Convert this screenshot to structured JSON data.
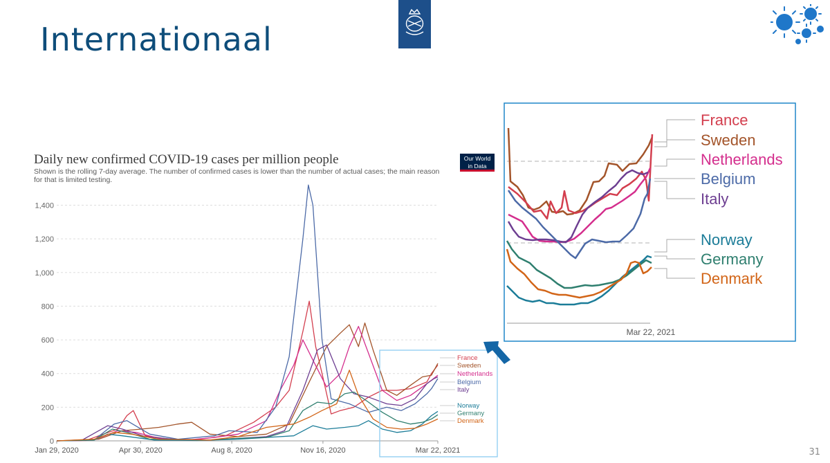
{
  "slide": {
    "title": "Internationaal",
    "page_number": "31"
  },
  "owid_logo": {
    "line1": "Our World",
    "line2": "in Data"
  },
  "colors": {
    "title": "#0e4d7a",
    "France": "#d33e4e",
    "Sweden": "#a3542a",
    "Netherlands": "#d42e8d",
    "Belgium": "#4c6aa7",
    "Italy": "#6d3e91",
    "Norway": "#1b7c98",
    "Germany": "#2f7f6f",
    "Denmark": "#d26518"
  },
  "chart_data": [
    {
      "type": "line",
      "title": "Daily new confirmed COVID-19 cases per million people",
      "subtitle": "Shown is the rolling 7-day average. The number of confirmed cases is lower than the number of actual cases; the main reason for that is limited testing.",
      "xlabel": "",
      "ylabel": "",
      "x_ticks": [
        "Jan 29, 2020",
        "Apr 30, 2020",
        "Aug 8, 2020",
        "Nov 16, 2020",
        "Mar 22, 2021"
      ],
      "y_ticks": [
        "0",
        "200",
        "400",
        "600",
        "800",
        "1,000",
        "1,200",
        "1,400"
      ],
      "x_range": [
        "2020-01-29",
        "2021-03-22"
      ],
      "ylim": [
        0,
        1550
      ],
      "grid": "horizontal dashed",
      "legend": "right, labels at line ends",
      "series": [
        {
          "name": "France",
          "points": [
            [
              "2020-01-29",
              0
            ],
            [
              "2020-03-01",
              2
            ],
            [
              "2020-03-20",
              40
            ],
            [
              "2020-04-05",
              70
            ],
            [
              "2020-04-15",
              150
            ],
            [
              "2020-04-22",
              180
            ],
            [
              "2020-05-05",
              30
            ],
            [
              "2020-06-01",
              10
            ],
            [
              "2020-07-01",
              8
            ],
            [
              "2020-08-01",
              30
            ],
            [
              "2020-09-01",
              110
            ],
            [
              "2020-09-25",
              200
            ],
            [
              "2020-10-10",
              300
            ],
            [
              "2020-10-25",
              650
            ],
            [
              "2020-11-01",
              830
            ],
            [
              "2020-11-08",
              560
            ],
            [
              "2020-11-15",
              400
            ],
            [
              "2020-11-25",
              160
            ],
            [
              "2020-12-05",
              180
            ],
            [
              "2020-12-20",
              200
            ],
            [
              "2021-01-05",
              260
            ],
            [
              "2021-01-20",
              300
            ],
            [
              "2021-02-05",
              300
            ],
            [
              "2021-02-20",
              310
            ],
            [
              "2021-03-01",
              330
            ],
            [
              "2021-03-10",
              350
            ],
            [
              "2021-03-15",
              400
            ],
            [
              "2021-03-22",
              450
            ]
          ]
        },
        {
          "name": "Sweden",
          "points": [
            [
              "2020-01-29",
              0
            ],
            [
              "2020-03-15",
              10
            ],
            [
              "2020-04-10",
              60
            ],
            [
              "2020-05-01",
              70
            ],
            [
              "2020-05-20",
              80
            ],
            [
              "2020-06-10",
              100
            ],
            [
              "2020-06-25",
              110
            ],
            [
              "2020-07-15",
              40
            ],
            [
              "2020-08-15",
              25
            ],
            [
              "2020-09-15",
              40
            ],
            [
              "2020-10-10",
              100
            ],
            [
              "2020-11-01",
              350
            ],
            [
              "2020-11-20",
              560
            ],
            [
              "2020-12-05",
              640
            ],
            [
              "2020-12-15",
              690
            ],
            [
              "2020-12-25",
              560
            ],
            [
              "2021-01-01",
              700
            ],
            [
              "2021-01-10",
              540
            ],
            [
              "2021-01-25",
              300
            ],
            [
              "2021-02-05",
              270
            ],
            [
              "2021-02-20",
              330
            ],
            [
              "2021-03-05",
              380
            ],
            [
              "2021-03-15",
              390
            ],
            [
              "2021-03-22",
              460
            ]
          ]
        },
        {
          "name": "Netherlands",
          "points": [
            [
              "2020-01-29",
              0
            ],
            [
              "2020-03-10",
              5
            ],
            [
              "2020-04-05",
              60
            ],
            [
              "2020-04-25",
              50
            ],
            [
              "2020-05-20",
              15
            ],
            [
              "2020-06-20",
              5
            ],
            [
              "2020-07-20",
              20
            ],
            [
              "2020-08-15",
              40
            ],
            [
              "2020-09-15",
              120
            ],
            [
              "2020-09-30",
              300
            ],
            [
              "2020-10-15",
              450
            ],
            [
              "2020-10-25",
              600
            ],
            [
              "2020-11-05",
              480
            ],
            [
              "2020-11-20",
              320
            ],
            [
              "2020-12-05",
              400
            ],
            [
              "2020-12-15",
              560
            ],
            [
              "2020-12-25",
              680
            ],
            [
              "2021-01-05",
              520
            ],
            [
              "2021-01-20",
              300
            ],
            [
              "2021-02-05",
              240
            ],
            [
              "2021-02-20",
              270
            ],
            [
              "2021-03-05",
              320
            ],
            [
              "2021-03-15",
              360
            ],
            [
              "2021-03-22",
              390
            ]
          ]
        },
        {
          "name": "Belgium",
          "points": [
            [
              "2020-01-29",
              0
            ],
            [
              "2020-03-10",
              5
            ],
            [
              "2020-04-01",
              100
            ],
            [
              "2020-04-15",
              120
            ],
            [
              "2020-05-10",
              40
            ],
            [
              "2020-06-10",
              10
            ],
            [
              "2020-07-20",
              30
            ],
            [
              "2020-08-05",
              60
            ],
            [
              "2020-09-05",
              50
            ],
            [
              "2020-09-25",
              200
            ],
            [
              "2020-10-10",
              500
            ],
            [
              "2020-10-25",
              1200
            ],
            [
              "2020-10-31",
              1520
            ],
            [
              "2020-11-05",
              1400
            ],
            [
              "2020-11-15",
              600
            ],
            [
              "2020-11-25",
              250
            ],
            [
              "2020-12-15",
              220
            ],
            [
              "2021-01-05",
              170
            ],
            [
              "2021-01-25",
              200
            ],
            [
              "2021-02-10",
              180
            ],
            [
              "2021-02-25",
              220
            ],
            [
              "2021-03-10",
              280
            ],
            [
              "2021-03-15",
              310
            ],
            [
              "2021-03-22",
              370
            ]
          ]
        },
        {
          "name": "Italy",
          "points": [
            [
              "2020-01-29",
              0
            ],
            [
              "2020-02-25",
              2
            ],
            [
              "2020-03-15",
              60
            ],
            [
              "2020-03-25",
              90
            ],
            [
              "2020-04-10",
              70
            ],
            [
              "2020-05-05",
              25
            ],
            [
              "2020-06-15",
              5
            ],
            [
              "2020-07-15",
              5
            ],
            [
              "2020-08-15",
              15
            ],
            [
              "2020-09-15",
              25
            ],
            [
              "2020-10-05",
              60
            ],
            [
              "2020-10-25",
              300
            ],
            [
              "2020-11-10",
              540
            ],
            [
              "2020-11-20",
              570
            ],
            [
              "2020-12-05",
              370
            ],
            [
              "2020-12-20",
              280
            ],
            [
              "2021-01-05",
              260
            ],
            [
              "2021-01-25",
              220
            ],
            [
              "2021-02-10",
              210
            ],
            [
              "2021-02-25",
              250
            ],
            [
              "2021-03-10",
              340
            ],
            [
              "2021-03-18",
              370
            ],
            [
              "2021-03-22",
              380
            ]
          ]
        },
        {
          "name": "Norway",
          "points": [
            [
              "2020-01-29",
              0
            ],
            [
              "2020-03-10",
              5
            ],
            [
              "2020-03-25",
              40
            ],
            [
              "2020-04-10",
              30
            ],
            [
              "2020-05-15",
              5
            ],
            [
              "2020-07-01",
              2
            ],
            [
              "2020-08-15",
              10
            ],
            [
              "2020-09-15",
              20
            ],
            [
              "2020-10-15",
              30
            ],
            [
              "2020-11-05",
              90
            ],
            [
              "2020-11-20",
              70
            ],
            [
              "2020-12-10",
              80
            ],
            [
              "2020-12-25",
              90
            ],
            [
              "2021-01-05",
              120
            ],
            [
              "2021-01-20",
              70
            ],
            [
              "2021-02-05",
              50
            ],
            [
              "2021-02-20",
              60
            ],
            [
              "2021-03-05",
              100
            ],
            [
              "2021-03-15",
              150
            ],
            [
              "2021-03-22",
              175
            ]
          ]
        },
        {
          "name": "Germany",
          "points": [
            [
              "2020-01-29",
              0
            ],
            [
              "2020-03-10",
              5
            ],
            [
              "2020-03-30",
              70
            ],
            [
              "2020-04-15",
              50
            ],
            [
              "2020-05-10",
              10
            ],
            [
              "2020-07-15",
              5
            ],
            [
              "2020-08-15",
              15
            ],
            [
              "2020-09-15",
              20
            ],
            [
              "2020-10-10",
              60
            ],
            [
              "2020-10-25",
              180
            ],
            [
              "2020-11-10",
              230
            ],
            [
              "2020-11-25",
              220
            ],
            [
              "2020-12-10",
              280
            ],
            [
              "2020-12-20",
              290
            ],
            [
              "2021-01-05",
              230
            ],
            [
              "2021-01-20",
              170
            ],
            [
              "2021-02-05",
              120
            ],
            [
              "2021-02-20",
              100
            ],
            [
              "2021-03-05",
              110
            ],
            [
              "2021-03-15",
              130
            ],
            [
              "2021-03-22",
              155
            ]
          ]
        },
        {
          "name": "Denmark",
          "points": [
            [
              "2020-01-29",
              0
            ],
            [
              "2020-03-10",
              10
            ],
            [
              "2020-04-01",
              50
            ],
            [
              "2020-04-20",
              40
            ],
            [
              "2020-05-20",
              10
            ],
            [
              "2020-07-15",
              5
            ],
            [
              "2020-08-15",
              25
            ],
            [
              "2020-09-15",
              80
            ],
            [
              "2020-10-15",
              100
            ],
            [
              "2020-11-01",
              140
            ],
            [
              "2020-11-15",
              180
            ],
            [
              "2020-12-01",
              220
            ],
            [
              "2020-12-15",
              420
            ],
            [
              "2020-12-25",
              270
            ],
            [
              "2021-01-10",
              130
            ],
            [
              "2021-01-25",
              80
            ],
            [
              "2021-02-10",
              70
            ],
            [
              "2021-02-25",
              75
            ],
            [
              "2021-03-10",
              100
            ],
            [
              "2021-03-22",
              130
            ]
          ]
        }
      ]
    },
    {
      "type": "line",
      "title": "",
      "x_ticks": [
        "Mar 22, 2021"
      ],
      "legend": "right, labels at line ends",
      "series_names": [
        "France",
        "Sweden",
        "Netherlands",
        "Belgium",
        "Italy",
        "Norway",
        "Germany",
        "Denmark"
      ]
    }
  ]
}
